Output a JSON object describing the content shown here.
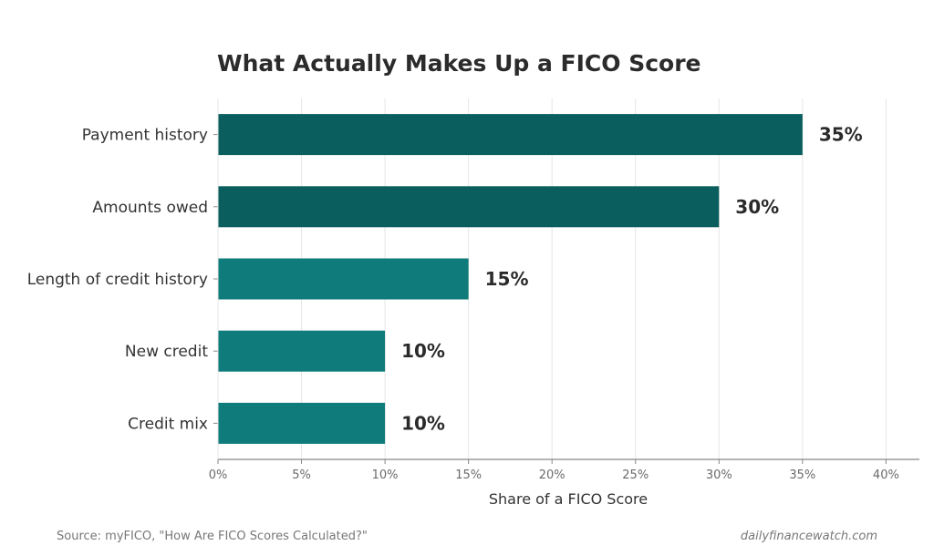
{
  "chart_data": {
    "type": "bar",
    "orientation": "horizontal",
    "title": "What Actually Makes Up a FICO Score",
    "xlabel": "Share of a FICO Score",
    "ylabel": "",
    "categories": [
      "Payment history",
      "Amounts owed",
      "Length of credit history",
      "New credit",
      "Credit mix"
    ],
    "values": [
      35,
      30,
      15,
      10,
      10
    ],
    "value_labels": [
      "35%",
      "30%",
      "15%",
      "10%",
      "10%"
    ],
    "bar_colors": [
      "#0b5e5e",
      "#0b5e5e",
      "#0f7b7a",
      "#0f7b7a",
      "#0f7b7a"
    ],
    "xlim": [
      0,
      42
    ],
    "x_ticks": [
      0,
      5,
      10,
      15,
      20,
      25,
      30,
      35,
      40
    ],
    "x_tick_labels": [
      "0%",
      "5%",
      "10%",
      "15%",
      "20%",
      "25%",
      "30%",
      "35%",
      "40%"
    ],
    "grid": "vertical",
    "legend": "none"
  },
  "footer": {
    "source": "Source: myFICO, \"How Are FICO Scores Calculated?\"",
    "brand": "dailyfinancewatch.com"
  },
  "colors": {
    "grid": "#e6e6e6",
    "axis": "#888888",
    "text": "#2b2b2b"
  }
}
